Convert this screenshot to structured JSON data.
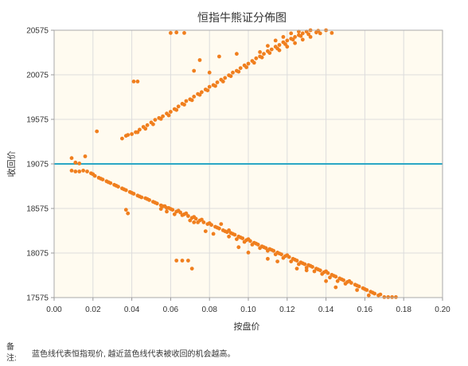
{
  "chart_data": {
    "type": "scatter",
    "title": "恒指牛熊证分佈图",
    "xlabel": "按盘价",
    "ylabel": "收回价",
    "xlim": [
      0.0,
      0.2
    ],
    "ylim": [
      17575,
      20575
    ],
    "x_ticks": [
      "0.00",
      "0.02",
      "0.04",
      "0.06",
      "0.08",
      "0.10",
      "0.12",
      "0.14",
      "0.16",
      "0.18",
      "0.20"
    ],
    "y_ticks": [
      "17575",
      "18075",
      "18575",
      "19075",
      "19575",
      "20075",
      "20575"
    ],
    "grid": true,
    "reference_line": {
      "y": 19075,
      "color": "#2aa7c5"
    },
    "point_color": "#f07f1e",
    "series": [
      {
        "points": [
          [
            0.035,
            19360
          ],
          [
            0.037,
            19390
          ],
          [
            0.038,
            19400
          ],
          [
            0.04,
            19410
          ],
          [
            0.042,
            19430
          ],
          [
            0.044,
            19460
          ],
          [
            0.046,
            19490
          ],
          [
            0.048,
            19510
          ],
          [
            0.05,
            19540
          ],
          [
            0.052,
            19570
          ],
          [
            0.054,
            19590
          ],
          [
            0.056,
            19610
          ],
          [
            0.058,
            19640
          ],
          [
            0.06,
            19660
          ],
          [
            0.062,
            19690
          ],
          [
            0.064,
            19720
          ],
          [
            0.066,
            19750
          ],
          [
            0.068,
            19780
          ],
          [
            0.07,
            19800
          ],
          [
            0.072,
            19830
          ],
          [
            0.074,
            19860
          ],
          [
            0.076,
            19880
          ],
          [
            0.078,
            19910
          ],
          [
            0.08,
            19940
          ],
          [
            0.082,
            19960
          ],
          [
            0.084,
            19990
          ],
          [
            0.086,
            20020
          ],
          [
            0.088,
            20040
          ],
          [
            0.09,
            20070
          ],
          [
            0.092,
            20100
          ],
          [
            0.094,
            20120
          ],
          [
            0.096,
            20150
          ],
          [
            0.098,
            20180
          ],
          [
            0.1,
            20200
          ],
          [
            0.102,
            20230
          ],
          [
            0.104,
            20260
          ],
          [
            0.106,
            20280
          ],
          [
            0.108,
            20310
          ],
          [
            0.11,
            20340
          ],
          [
            0.112,
            20360
          ],
          [
            0.114,
            20390
          ],
          [
            0.116,
            20410
          ],
          [
            0.118,
            20440
          ],
          [
            0.12,
            20460
          ],
          [
            0.122,
            20480
          ],
          [
            0.124,
            20500
          ],
          [
            0.126,
            20520
          ],
          [
            0.128,
            20540
          ],
          [
            0.13,
            20560
          ],
          [
            0.132,
            20575
          ],
          [
            0.136,
            20570
          ],
          [
            0.14,
            20575
          ],
          [
            0.043,
            19430
          ],
          [
            0.047,
            19470
          ],
          [
            0.051,
            19520
          ],
          [
            0.055,
            19580
          ],
          [
            0.059,
            19620
          ],
          [
            0.063,
            19680
          ],
          [
            0.067,
            19740
          ],
          [
            0.071,
            19790
          ],
          [
            0.075,
            19850
          ],
          [
            0.079,
            19900
          ],
          [
            0.083,
            19950
          ],
          [
            0.087,
            20000
          ],
          [
            0.091,
            20060
          ],
          [
            0.095,
            20110
          ],
          [
            0.099,
            20160
          ],
          [
            0.103,
            20210
          ],
          [
            0.107,
            20270
          ],
          [
            0.111,
            20320
          ],
          [
            0.115,
            20370
          ],
          [
            0.119,
            20420
          ],
          [
            0.123,
            20470
          ],
          [
            0.127,
            20510
          ],
          [
            0.131,
            20530
          ],
          [
            0.135,
            20550
          ],
          [
            0.106,
            20330
          ],
          [
            0.11,
            20400
          ],
          [
            0.114,
            20460
          ],
          [
            0.118,
            20500
          ],
          [
            0.122,
            20540
          ],
          [
            0.126,
            20560
          ],
          [
            0.116,
            20350
          ],
          [
            0.12,
            20390
          ],
          [
            0.124,
            20430
          ],
          [
            0.128,
            20470
          ],
          [
            0.132,
            20500
          ],
          [
            0.137,
            20540
          ],
          [
            0.041,
            20000
          ],
          [
            0.043,
            20000
          ],
          [
            0.022,
            19440
          ],
          [
            0.06,
            20545
          ],
          [
            0.063,
            20550
          ],
          [
            0.067,
            20545
          ],
          [
            0.072,
            20120
          ],
          [
            0.075,
            20240
          ],
          [
            0.08,
            20100
          ],
          [
            0.085,
            20280
          ],
          [
            0.094,
            20310
          ],
          [
            0.143,
            20545
          ],
          [
            0.009,
            19140
          ],
          [
            0.011,
            19090
          ],
          [
            0.013,
            19080
          ],
          [
            0.016,
            19160
          ],
          [
            0.009,
            19000
          ],
          [
            0.011,
            18990
          ],
          [
            0.013,
            18990
          ],
          [
            0.015,
            19000
          ],
          [
            0.017,
            18990
          ],
          [
            0.019,
            18970
          ],
          [
            0.021,
            18940
          ],
          [
            0.023,
            18920
          ],
          [
            0.025,
            18900
          ],
          [
            0.027,
            18880
          ],
          [
            0.029,
            18860
          ],
          [
            0.031,
            18840
          ],
          [
            0.033,
            18820
          ],
          [
            0.035,
            18800
          ],
          [
            0.037,
            18780
          ],
          [
            0.039,
            18760
          ],
          [
            0.041,
            18740
          ],
          [
            0.043,
            18720
          ],
          [
            0.045,
            18700
          ],
          [
            0.047,
            18690
          ],
          [
            0.049,
            18670
          ],
          [
            0.051,
            18650
          ],
          [
            0.053,
            18630
          ],
          [
            0.055,
            18610
          ],
          [
            0.057,
            18600
          ],
          [
            0.059,
            18580
          ],
          [
            0.061,
            18560
          ],
          [
            0.063,
            18540
          ],
          [
            0.065,
            18530
          ],
          [
            0.067,
            18510
          ],
          [
            0.069,
            18490
          ],
          [
            0.071,
            18470
          ],
          [
            0.073,
            18460
          ],
          [
            0.075,
            18440
          ],
          [
            0.077,
            18420
          ],
          [
            0.079,
            18400
          ],
          [
            0.081,
            18390
          ],
          [
            0.083,
            18370
          ],
          [
            0.085,
            18350
          ],
          [
            0.087,
            18330
          ],
          [
            0.089,
            18310
          ],
          [
            0.091,
            18300
          ],
          [
            0.093,
            18280
          ],
          [
            0.095,
            18260
          ],
          [
            0.097,
            18240
          ],
          [
            0.099,
            18220
          ],
          [
            0.101,
            18210
          ],
          [
            0.103,
            18190
          ],
          [
            0.105,
            18170
          ],
          [
            0.107,
            18150
          ],
          [
            0.109,
            18130
          ],
          [
            0.111,
            18120
          ],
          [
            0.113,
            18100
          ],
          [
            0.115,
            18080
          ],
          [
            0.117,
            18060
          ],
          [
            0.119,
            18040
          ],
          [
            0.121,
            18030
          ],
          [
            0.123,
            18010
          ],
          [
            0.125,
            17990
          ],
          [
            0.127,
            17970
          ],
          [
            0.129,
            17950
          ],
          [
            0.131,
            17940
          ],
          [
            0.133,
            17920
          ],
          [
            0.135,
            17900
          ],
          [
            0.137,
            17880
          ],
          [
            0.139,
            17860
          ],
          [
            0.141,
            17850
          ],
          [
            0.143,
            17830
          ],
          [
            0.145,
            17810
          ],
          [
            0.147,
            17790
          ],
          [
            0.149,
            17770
          ],
          [
            0.151,
            17750
          ],
          [
            0.153,
            17740
          ],
          [
            0.155,
            17720
          ],
          [
            0.157,
            17700
          ],
          [
            0.159,
            17680
          ],
          [
            0.161,
            17660
          ],
          [
            0.163,
            17640
          ],
          [
            0.165,
            17620
          ],
          [
            0.167,
            17600
          ],
          [
            0.17,
            17580
          ],
          [
            0.172,
            17580
          ],
          [
            0.174,
            17580
          ],
          [
            0.176,
            17580
          ],
          [
            0.02,
            18960
          ],
          [
            0.024,
            18910
          ],
          [
            0.028,
            18870
          ],
          [
            0.032,
            18830
          ],
          [
            0.036,
            18790
          ],
          [
            0.04,
            18750
          ],
          [
            0.044,
            18710
          ],
          [
            0.048,
            18680
          ],
          [
            0.052,
            18640
          ],
          [
            0.056,
            18600
          ],
          [
            0.06,
            18570
          ],
          [
            0.064,
            18550
          ],
          [
            0.068,
            18520
          ],
          [
            0.072,
            18480
          ],
          [
            0.076,
            18450
          ],
          [
            0.08,
            18410
          ],
          [
            0.084,
            18360
          ],
          [
            0.088,
            18320
          ],
          [
            0.092,
            18290
          ],
          [
            0.096,
            18250
          ],
          [
            0.1,
            18230
          ],
          [
            0.104,
            18180
          ],
          [
            0.108,
            18140
          ],
          [
            0.112,
            18110
          ],
          [
            0.116,
            18070
          ],
          [
            0.12,
            18050
          ],
          [
            0.124,
            18000
          ],
          [
            0.128,
            17960
          ],
          [
            0.132,
            17930
          ],
          [
            0.136,
            17890
          ],
          [
            0.14,
            17870
          ],
          [
            0.144,
            17820
          ],
          [
            0.148,
            17780
          ],
          [
            0.152,
            17760
          ],
          [
            0.156,
            17710
          ],
          [
            0.16,
            17670
          ],
          [
            0.164,
            17630
          ],
          [
            0.168,
            17610
          ],
          [
            0.09,
            18260
          ],
          [
            0.094,
            18230
          ],
          [
            0.098,
            18200
          ],
          [
            0.102,
            18170
          ],
          [
            0.106,
            18130
          ],
          [
            0.11,
            18100
          ],
          [
            0.114,
            18060
          ],
          [
            0.118,
            18020
          ],
          [
            0.122,
            17980
          ],
          [
            0.126,
            17950
          ],
          [
            0.13,
            17910
          ],
          [
            0.134,
            17870
          ],
          [
            0.138,
            17840
          ],
          [
            0.142,
            17800
          ],
          [
            0.146,
            17760
          ],
          [
            0.15,
            17730
          ],
          [
            0.037,
            18560
          ],
          [
            0.038,
            18520
          ],
          [
            0.063,
            17990
          ],
          [
            0.066,
            17990
          ],
          [
            0.069,
            17990
          ],
          [
            0.071,
            17900
          ],
          [
            0.078,
            18320
          ],
          [
            0.082,
            18290
          ],
          [
            0.095,
            18140
          ],
          [
            0.1,
            18080
          ],
          [
            0.11,
            18010
          ],
          [
            0.115,
            17980
          ],
          [
            0.125,
            17900
          ],
          [
            0.13,
            17880
          ],
          [
            0.14,
            17760
          ],
          [
            0.145,
            17690
          ],
          [
            0.156,
            17660
          ],
          [
            0.162,
            17600
          ],
          [
            0.055,
            18570
          ],
          [
            0.058,
            18540
          ],
          [
            0.062,
            18510
          ],
          [
            0.066,
            18500
          ],
          [
            0.07,
            18440
          ],
          [
            0.074,
            18420
          ],
          [
            0.086,
            18400
          ],
          [
            0.09,
            18330
          ],
          [
            0.058,
            18580
          ],
          [
            0.072,
            18420
          ]
        ]
      }
    ]
  },
  "note": {
    "label": "备注:",
    "text": "蓝色线代表恒指现价, 越近蓝色线代表被收回的机会越高。"
  }
}
